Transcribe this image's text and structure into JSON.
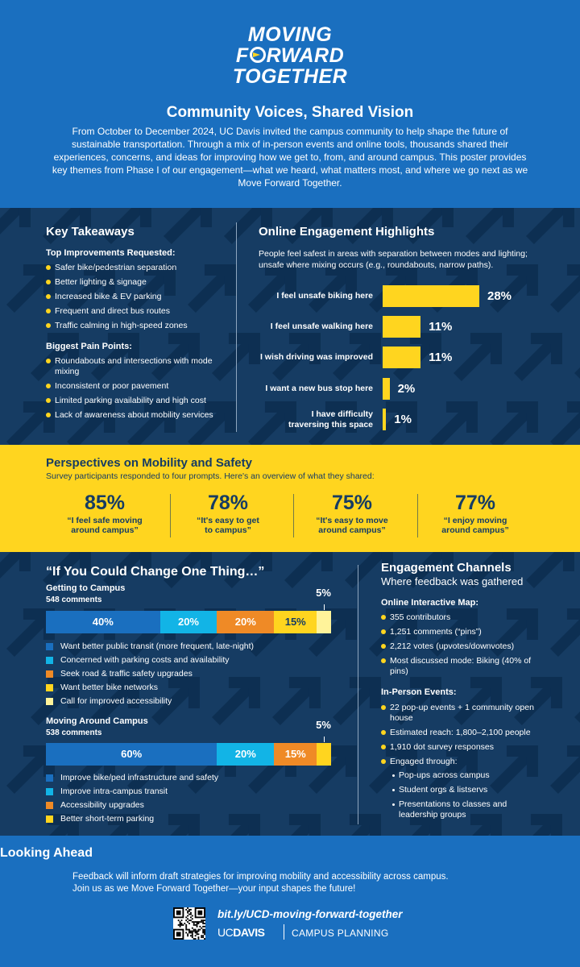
{
  "header": {
    "logo_line1": "MOVING",
    "logo_line2_pre": "F",
    "logo_line2_post": "RWARD",
    "logo_line3": "TOGETHER",
    "title": "Community Voices, Shared Vision",
    "intro": "From October to December 2024, UC Davis invited the campus community to help shape the future of sustainable transportation. Through a mix of in-person events and online tools, thousands shared their experiences, concerns, and ideas for improving how we get to, from, and around campus. This poster provides key themes from Phase I of our engagement—what we heard, what matters most, and where we go next as we Move Forward Together."
  },
  "takeaways": {
    "title": "Key Takeaways",
    "improvements_title": "Top Improvements Requested:",
    "improvements": [
      "Safer bike/pedestrian separation",
      "Better lighting & signage",
      "Increased bike & EV parking",
      "Frequent and direct bus routes",
      "Traffic calming in high-speed zones"
    ],
    "pain_title": "Biggest Pain Points:",
    "pain_points": [
      "Roundabouts and intersections with mode mixing",
      "Inconsistent or poor pavement",
      "Limited parking availability and high cost",
      "Lack of awareness about mobility services"
    ]
  },
  "online": {
    "title": "Online Engagement Highlights",
    "desc": "People feel safest in areas with separation between modes and lighting; unsafe where mixing occurs (e.g., roundabouts, narrow paths).",
    "bar_color": "#ffd51f"
  },
  "chart_data": [
    {
      "type": "bar",
      "orientation": "horizontal",
      "categories": [
        "I feel unsafe biking here",
        "I feel unsafe walking here",
        "I wish driving was improved",
        "I want a new bus stop here",
        "I have difficulty traversing this space"
      ],
      "values": [
        28,
        11,
        11,
        2,
        1
      ],
      "value_labels": [
        "28%",
        "11%",
        "11%",
        "2%",
        "1%"
      ],
      "xlim": [
        0,
        28
      ]
    },
    {
      "type": "bar",
      "orientation": "horizontal-stacked",
      "title": "Getting to Campus",
      "subtitle": "548 comments",
      "series": [
        {
          "name": "Want better public transit (more frequent, late-night)",
          "value": 40,
          "label": "40%",
          "color": "#1a6fbf"
        },
        {
          "name": "Concerned with parking costs and availability",
          "value": 20,
          "label": "20%",
          "color": "#12b4e6"
        },
        {
          "name": "Seek road & traffic safety upgrades",
          "value": 20,
          "label": "20%",
          "color": "#ef8a26"
        },
        {
          "name": "Want better bike networks",
          "value": 15,
          "label": "15%",
          "color": "#ffd51f"
        },
        {
          "name": "Call for improved accessibility",
          "value": 5,
          "label": "5%",
          "color": "#fff39a"
        }
      ]
    },
    {
      "type": "bar",
      "orientation": "horizontal-stacked",
      "title": "Moving Around Campus",
      "subtitle": "538 comments",
      "series": [
        {
          "name": "Improve bike/ped infrastructure and safety",
          "value": 60,
          "label": "60%",
          "color": "#1a6fbf"
        },
        {
          "name": "Improve intra-campus transit",
          "value": 20,
          "label": "20%",
          "color": "#12b4e6"
        },
        {
          "name": "Accessibility upgrades",
          "value": 15,
          "label": "15%",
          "color": "#ef8a26"
        },
        {
          "name": "Better short-term parking",
          "value": 5,
          "label": "5%",
          "color": "#ffd51f"
        }
      ]
    }
  ],
  "perspectives": {
    "title": "Perspectives on Mobility and Safety",
    "subtitle": "Survey participants responded to four prompts. Here's an overview of what they shared:",
    "stats": [
      {
        "pct": "85%",
        "l1": "“I feel safe moving",
        "l2": "around campus”"
      },
      {
        "pct": "78%",
        "l1": "“It's easy to get",
        "l2": "to campus”"
      },
      {
        "pct": "75%",
        "l1": "“It's easy to move",
        "l2": "around campus”"
      },
      {
        "pct": "77%",
        "l1": "“I enjoy moving",
        "l2": "around campus”"
      }
    ]
  },
  "change": {
    "title": "“If You Could Change One Thing…”"
  },
  "channels": {
    "title": "Engagement Channels",
    "subtitle": "Where feedback was gathered",
    "online_title": "Online Interactive Map:",
    "online": [
      "355 contributors",
      "1,251 comments (“pins”)",
      "2,212 votes (upvotes/downvotes)",
      "Most discussed mode: Biking (40% of pins)"
    ],
    "inperson_title": "In-Person Events:",
    "inperson": [
      "22 pop-up events + 1 community open house",
      "Estimated reach: 1,800–2,100 people",
      "1,910 dot survey responses",
      "Engaged through:"
    ],
    "engaged_through": [
      "Pop-ups across campus",
      "Student orgs & listservs",
      "Presentations to classes and leadership groups"
    ]
  },
  "footer": {
    "title": "Looking Ahead",
    "text1": "Feedback will inform draft strategies for improving mobility and accessibility across campus.",
    "text2": "Join us as we Move Forward Together—your input shapes the future!",
    "link": "bit.ly/UCD-moving-forward-together",
    "brand_uc": "UC",
    "brand_davis": "DAVIS",
    "dept": "CAMPUS PLANNING"
  }
}
